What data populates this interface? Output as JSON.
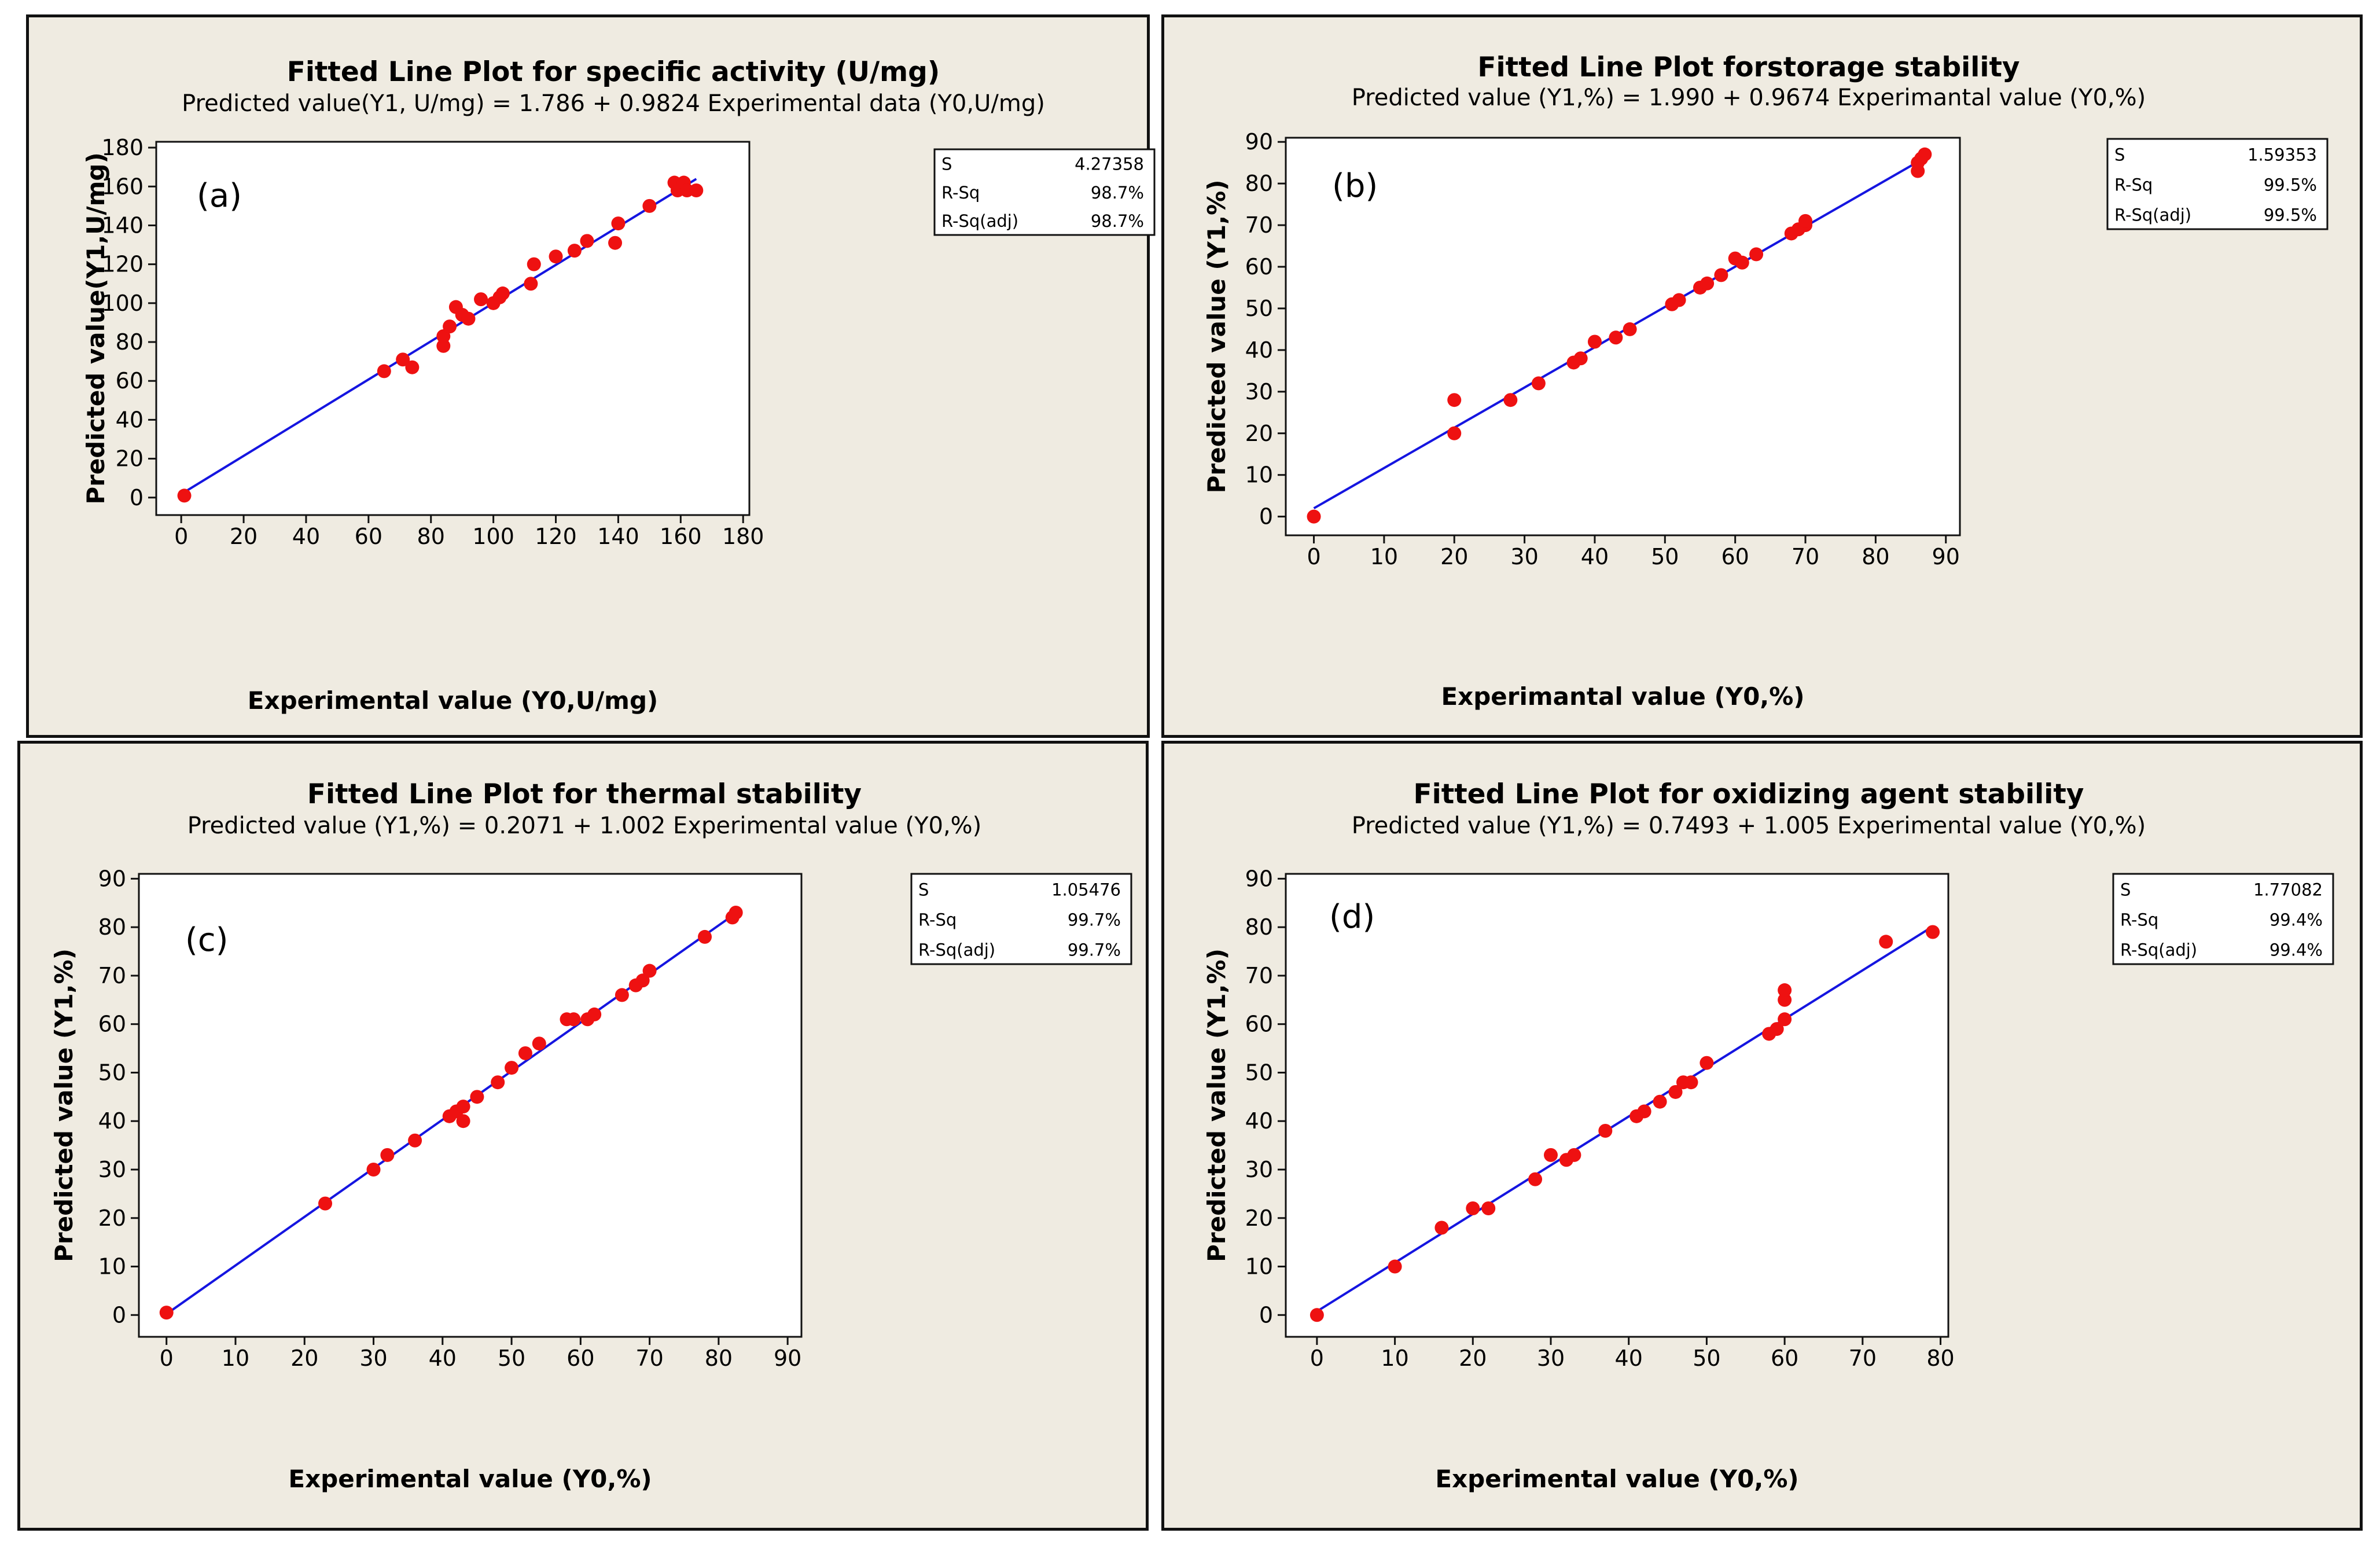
{
  "chart_data": [
    {
      "type": "scatter",
      "panel_label": "(a)",
      "title": "Fitted Line Plot for specific activity (U/mg)",
      "subtitle": "Predicted value(Y1, U/mg) =  1.786 + 0.9824 Experimental data (Y0,U/mg)",
      "xlabel": "Experimental value (Y0,U/mg)",
      "ylabel": "Predicted value(Y1,U/mg)",
      "xlim": [
        -8,
        182
      ],
      "ylim": [
        -9,
        183
      ],
      "xticks": [
        0,
        20,
        40,
        60,
        80,
        100,
        120,
        140,
        160,
        180
      ],
      "yticks": [
        0,
        20,
        40,
        60,
        80,
        100,
        120,
        140,
        160,
        180
      ],
      "fit": {
        "intercept": 1.786,
        "slope": 0.9824,
        "x_range": [
          1,
          165
        ],
        "color": "#1515e0"
      },
      "point_color": "#ee1111",
      "stats": [
        {
          "label": "S",
          "value": "4.27358"
        },
        {
          "label": "R-Sq",
          "value": "98.7%"
        },
        {
          "label": "R-Sq(adj)",
          "value": "98.7%"
        }
      ],
      "points": [
        [
          1,
          1
        ],
        [
          65,
          65
        ],
        [
          71,
          71
        ],
        [
          74,
          67
        ],
        [
          84,
          78
        ],
        [
          84,
          83
        ],
        [
          86,
          88
        ],
        [
          88,
          98
        ],
        [
          90,
          94
        ],
        [
          92,
          92
        ],
        [
          96,
          102
        ],
        [
          100,
          100
        ],
        [
          102,
          103
        ],
        [
          103,
          105
        ],
        [
          112,
          110
        ],
        [
          113,
          120
        ],
        [
          120,
          124
        ],
        [
          126,
          127
        ],
        [
          130,
          132
        ],
        [
          139,
          131
        ],
        [
          140,
          141
        ],
        [
          150,
          150
        ],
        [
          158,
          162
        ],
        [
          159,
          158
        ],
        [
          160,
          160
        ],
        [
          161,
          162
        ],
        [
          162,
          158
        ],
        [
          165,
          158
        ]
      ]
    },
    {
      "type": "scatter",
      "panel_label": "(b)",
      "title": "Fitted Line Plot forstorage stability",
      "subtitle": "Predicted value (Y1,%) =  1.990 + 0.9674 Experimantal value (Y0,%)",
      "xlabel": "Experimantal value (Y0,%)",
      "ylabel": "Predicted value (Y1,%)",
      "xlim": [
        -4,
        92
      ],
      "ylim": [
        -4.5,
        91
      ],
      "xticks": [
        0,
        10,
        20,
        30,
        40,
        50,
        60,
        70,
        80,
        90
      ],
      "yticks": [
        0,
        10,
        20,
        30,
        40,
        50,
        60,
        70,
        80,
        90
      ],
      "fit": {
        "intercept": 1.99,
        "slope": 0.9674,
        "x_range": [
          0,
          87
        ],
        "color": "#1515e0"
      },
      "point_color": "#ee1111",
      "stats": [
        {
          "label": "S",
          "value": "1.59353"
        },
        {
          "label": "R-Sq",
          "value": "99.5%"
        },
        {
          "label": "R-Sq(adj)",
          "value": "99.5%"
        }
      ],
      "points": [
        [
          0,
          0
        ],
        [
          20,
          20
        ],
        [
          20,
          28
        ],
        [
          28,
          28
        ],
        [
          32,
          32
        ],
        [
          37,
          37
        ],
        [
          38,
          38
        ],
        [
          40,
          42
        ],
        [
          43,
          43
        ],
        [
          45,
          45
        ],
        [
          51,
          51
        ],
        [
          52,
          52
        ],
        [
          55,
          55
        ],
        [
          56,
          56
        ],
        [
          58,
          58
        ],
        [
          60,
          62
        ],
        [
          61,
          61
        ],
        [
          63,
          63
        ],
        [
          68,
          68
        ],
        [
          69,
          69
        ],
        [
          70,
          70
        ],
        [
          70,
          71
        ],
        [
          86,
          83
        ],
        [
          86,
          85
        ],
        [
          86.5,
          86
        ],
        [
          87,
          87
        ]
      ]
    },
    {
      "type": "scatter",
      "panel_label": "(c)",
      "title": "Fitted Line Plot for thermal stability",
      "subtitle": "Predicted value (Y1,%) =  0.2071 + 1.002 Experimental value (Y0,%)",
      "xlabel": "Experimental value (Y0,%)",
      "ylabel": "Predicted value (Y1,%)",
      "xlim": [
        -4,
        92
      ],
      "ylim": [
        -4.5,
        91
      ],
      "xticks": [
        0,
        10,
        20,
        30,
        40,
        50,
        60,
        70,
        80,
        90
      ],
      "yticks": [
        0,
        10,
        20,
        30,
        40,
        50,
        60,
        70,
        80,
        90
      ],
      "fit": {
        "intercept": 0.2071,
        "slope": 1.002,
        "x_range": [
          0,
          82.5
        ],
        "color": "#1515e0"
      },
      "point_color": "#ee1111",
      "stats": [
        {
          "label": "S",
          "value": "1.05476"
        },
        {
          "label": "R-Sq",
          "value": "99.7%"
        },
        {
          "label": "R-Sq(adj)",
          "value": "99.7%"
        }
      ],
      "points": [
        [
          0,
          0.5
        ],
        [
          23,
          23
        ],
        [
          30,
          30
        ],
        [
          32,
          33
        ],
        [
          36,
          36
        ],
        [
          41,
          41
        ],
        [
          42,
          42
        ],
        [
          43,
          43
        ],
        [
          43,
          40
        ],
        [
          45,
          45
        ],
        [
          48,
          48
        ],
        [
          50,
          51
        ],
        [
          52,
          54
        ],
        [
          54,
          56
        ],
        [
          58,
          61
        ],
        [
          59,
          61
        ],
        [
          61,
          61
        ],
        [
          62,
          62
        ],
        [
          66,
          66
        ],
        [
          68,
          68
        ],
        [
          69,
          69
        ],
        [
          70,
          71
        ],
        [
          78,
          78
        ],
        [
          82,
          82
        ],
        [
          82.5,
          83
        ]
      ]
    },
    {
      "type": "scatter",
      "panel_label": "(d)",
      "title": "Fitted Line Plot for oxidizing agent stability",
      "subtitle": "Predicted value (Y1,%) =  0.7493 + 1.005 Experimental value (Y0,%)",
      "xlabel": "Experimental value (Y0,%)",
      "ylabel": "Predicted value (Y1,%)",
      "xlim": [
        -4,
        81
      ],
      "ylim": [
        -4.5,
        91
      ],
      "xticks": [
        0,
        10,
        20,
        30,
        40,
        50,
        60,
        70,
        80
      ],
      "yticks": [
        0,
        10,
        20,
        30,
        40,
        50,
        60,
        70,
        80,
        90
      ],
      "fit": {
        "intercept": 0.7493,
        "slope": 1.005,
        "x_range": [
          0,
          79
        ],
        "color": "#1515e0"
      },
      "point_color": "#ee1111",
      "stats": [
        {
          "label": "S",
          "value": "1.77082"
        },
        {
          "label": "R-Sq",
          "value": "99.4%"
        },
        {
          "label": "R-Sq(adj)",
          "value": "99.4%"
        }
      ],
      "points": [
        [
          0,
          0
        ],
        [
          10,
          10
        ],
        [
          16,
          18
        ],
        [
          20,
          22
        ],
        [
          22,
          22
        ],
        [
          28,
          28
        ],
        [
          30,
          33
        ],
        [
          32,
          32
        ],
        [
          33,
          33
        ],
        [
          37,
          38
        ],
        [
          41,
          41
        ],
        [
          42,
          42
        ],
        [
          44,
          44
        ],
        [
          46,
          46
        ],
        [
          47,
          48
        ],
        [
          48,
          48
        ],
        [
          50,
          52
        ],
        [
          58,
          58
        ],
        [
          59,
          59
        ],
        [
          60,
          61
        ],
        [
          60,
          65
        ],
        [
          60,
          67
        ],
        [
          73,
          77
        ],
        [
          79,
          79
        ]
      ]
    }
  ]
}
